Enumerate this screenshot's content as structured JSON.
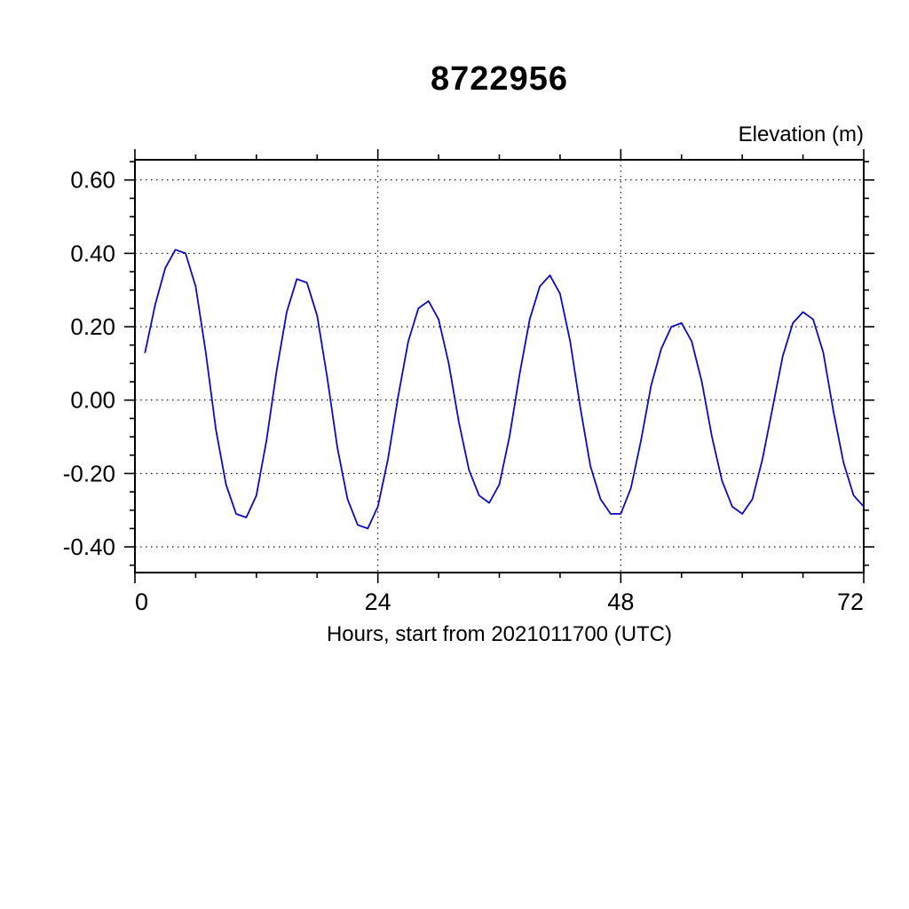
{
  "page": {
    "background": "#ffffff"
  },
  "chart_data": {
    "type": "line",
    "title": "8722956",
    "ylabel_right": "Elevation (m)",
    "xlabel": "Hours, start from 2021011700 (UTC)",
    "xlim": [
      0,
      72
    ],
    "ylim": [
      -0.47,
      0.655
    ],
    "x_ticks": [
      0,
      24,
      48,
      72
    ],
    "x_tick_labels": [
      "0",
      "24",
      "48",
      "72"
    ],
    "x_minor_step": 6,
    "y_ticks": [
      0.6,
      0.4,
      0.2,
      0.0,
      -0.2,
      -0.4
    ],
    "y_tick_labels": [
      "0.60",
      "0.40",
      "0.20",
      "0.00",
      "-0.20",
      "-0.40"
    ],
    "y_minor_step": 0.05,
    "grid": "dotted",
    "grid_color": "#000000",
    "axis_color": "#000000",
    "line_color": "#0b0bbf",
    "series": [
      {
        "name": "elevation",
        "x": [
          1,
          2,
          3,
          4,
          5,
          6,
          7,
          8,
          9,
          10,
          11,
          12,
          13,
          14,
          15,
          16,
          17,
          18,
          19,
          20,
          21,
          22,
          23,
          24,
          25,
          26,
          27,
          28,
          29,
          30,
          31,
          32,
          33,
          34,
          35,
          36,
          37,
          38,
          39,
          40,
          41,
          42,
          43,
          44,
          45,
          46,
          47,
          48,
          49,
          50,
          51,
          52,
          53,
          54,
          55,
          56,
          57,
          58,
          59,
          60,
          61,
          62,
          63,
          64,
          65,
          66,
          67,
          68,
          69,
          70,
          71,
          72
        ],
        "y": [
          0.13,
          0.26,
          0.36,
          0.41,
          0.4,
          0.31,
          0.13,
          -0.08,
          -0.23,
          -0.31,
          -0.32,
          -0.26,
          -0.11,
          0.08,
          0.24,
          0.33,
          0.32,
          0.23,
          0.06,
          -0.13,
          -0.27,
          -0.34,
          -0.35,
          -0.29,
          -0.16,
          0.01,
          0.16,
          0.25,
          0.27,
          0.22,
          0.1,
          -0.06,
          -0.19,
          -0.26,
          -0.28,
          -0.23,
          -0.1,
          0.07,
          0.22,
          0.31,
          0.34,
          0.29,
          0.16,
          -0.02,
          -0.18,
          -0.27,
          -0.31,
          -0.31,
          -0.24,
          -0.11,
          0.04,
          0.14,
          0.2,
          0.21,
          0.16,
          0.05,
          -0.1,
          -0.22,
          -0.29,
          -0.31,
          -0.27,
          -0.16,
          -0.02,
          0.12,
          0.21,
          0.24,
          0.22,
          0.13,
          -0.03,
          -0.17,
          -0.26,
          -0.29
        ]
      }
    ]
  }
}
